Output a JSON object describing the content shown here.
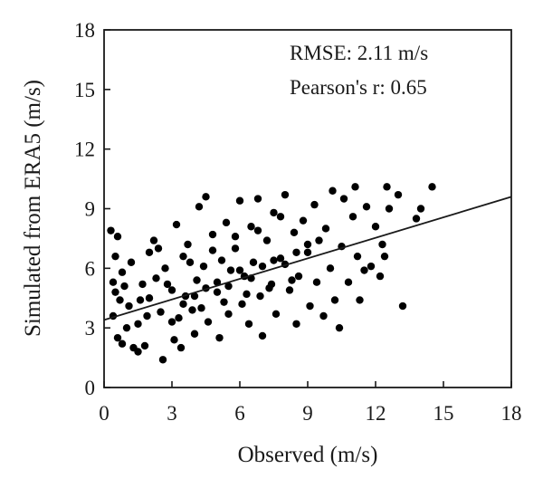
{
  "chart_data": {
    "type": "scatter",
    "xlabel": "Observed (m/s)",
    "ylabel": "Simulated from ERA5 (m/s)",
    "xlim": [
      0,
      18
    ],
    "ylim": [
      0,
      18
    ],
    "xticks": [
      0,
      3,
      6,
      9,
      12,
      15,
      18
    ],
    "yticks": [
      0,
      3,
      6,
      9,
      12,
      15,
      18
    ],
    "grid": false,
    "annotations": [
      "RMSE: 2.11 m/s",
      "Pearson's r: 0.65"
    ],
    "regression_line": {
      "x": [
        0,
        18
      ],
      "y": [
        3.4,
        9.6
      ]
    },
    "point_color": "#000000",
    "series": [
      {
        "values": [
          [
            0.3,
            7.9
          ],
          [
            0.5,
            6.6
          ],
          [
            0.6,
            7.6
          ],
          [
            0.8,
            5.8
          ],
          [
            0.4,
            5.3
          ],
          [
            0.5,
            4.8
          ],
          [
            0.7,
            4.4
          ],
          [
            0.4,
            3.6
          ],
          [
            0.6,
            2.5
          ],
          [
            0.8,
            2.2
          ],
          [
            1.0,
            3.0
          ],
          [
            0.9,
            5.1
          ],
          [
            1.2,
            6.3
          ],
          [
            1.3,
            2.0
          ],
          [
            1.5,
            1.8
          ],
          [
            1.6,
            4.4
          ],
          [
            1.8,
            2.1
          ],
          [
            1.9,
            3.6
          ],
          [
            2.0,
            6.8
          ],
          [
            2.2,
            7.4
          ],
          [
            2.4,
            7.0
          ],
          [
            2.6,
            1.4
          ],
          [
            2.8,
            5.2
          ],
          [
            3.0,
            3.3
          ],
          [
            3.1,
            2.4
          ],
          [
            3.2,
            8.2
          ],
          [
            3.4,
            2.0
          ],
          [
            3.5,
            6.6
          ],
          [
            3.6,
            4.6
          ],
          [
            3.7,
            7.2
          ],
          [
            3.9,
            3.9
          ],
          [
            4.0,
            2.7
          ],
          [
            4.1,
            5.4
          ],
          [
            4.2,
            9.1
          ],
          [
            4.4,
            6.1
          ],
          [
            4.5,
            9.6
          ],
          [
            4.6,
            3.3
          ],
          [
            4.8,
            7.7
          ],
          [
            5.0,
            4.8
          ],
          [
            5.1,
            2.5
          ],
          [
            5.2,
            6.4
          ],
          [
            5.4,
            8.3
          ],
          [
            5.5,
            3.7
          ],
          [
            5.6,
            5.9
          ],
          [
            5.8,
            7.0
          ],
          [
            6.0,
            9.4
          ],
          [
            6.1,
            4.2
          ],
          [
            6.2,
            5.6
          ],
          [
            6.4,
            3.2
          ],
          [
            6.5,
            8.1
          ],
          [
            6.6,
            6.3
          ],
          [
            6.8,
            9.5
          ],
          [
            6.9,
            4.6
          ],
          [
            7.0,
            2.6
          ],
          [
            7.2,
            7.4
          ],
          [
            7.4,
            5.2
          ],
          [
            7.5,
            8.8
          ],
          [
            7.6,
            3.7
          ],
          [
            7.8,
            6.5
          ],
          [
            8.0,
            9.7
          ],
          [
            8.2,
            4.9
          ],
          [
            8.4,
            7.8
          ],
          [
            8.5,
            3.2
          ],
          [
            8.6,
            5.6
          ],
          [
            8.8,
            8.4
          ],
          [
            9.0,
            6.8
          ],
          [
            9.1,
            4.1
          ],
          [
            9.3,
            9.2
          ],
          [
            9.4,
            5.3
          ],
          [
            9.5,
            7.4
          ],
          [
            9.7,
            3.6
          ],
          [
            9.8,
            8.0
          ],
          [
            10.0,
            6.0
          ],
          [
            10.1,
            9.9
          ],
          [
            10.2,
            4.4
          ],
          [
            10.4,
            3.0
          ],
          [
            10.5,
            7.1
          ],
          [
            10.6,
            9.5
          ],
          [
            10.8,
            5.3
          ],
          [
            11.0,
            8.6
          ],
          [
            11.1,
            10.1
          ],
          [
            11.2,
            6.6
          ],
          [
            11.3,
            4.4
          ],
          [
            11.5,
            5.9
          ],
          [
            11.6,
            9.1
          ],
          [
            11.8,
            6.1
          ],
          [
            12.0,
            8.1
          ],
          [
            12.2,
            5.6
          ],
          [
            12.3,
            7.2
          ],
          [
            12.4,
            6.6
          ],
          [
            12.5,
            10.1
          ],
          [
            12.6,
            9.0
          ],
          [
            13.0,
            9.7
          ],
          [
            13.2,
            4.1
          ],
          [
            13.8,
            8.5
          ],
          [
            14.0,
            9.0
          ],
          [
            14.5,
            10.1
          ],
          [
            2.0,
            4.5
          ],
          [
            2.5,
            3.8
          ],
          [
            3.0,
            4.9
          ],
          [
            3.5,
            4.2
          ],
          [
            4.0,
            4.6
          ],
          [
            4.5,
            5.0
          ],
          [
            5.0,
            5.3
          ],
          [
            5.5,
            5.1
          ],
          [
            6.0,
            5.9
          ],
          [
            6.5,
            5.5
          ],
          [
            7.0,
            6.1
          ],
          [
            7.5,
            6.4
          ],
          [
            8.0,
            6.2
          ],
          [
            8.5,
            6.8
          ],
          [
            9.0,
            7.2
          ],
          [
            1.5,
            3.2
          ],
          [
            2.3,
            5.5
          ],
          [
            3.3,
            3.5
          ],
          [
            4.3,
            4.0
          ],
          [
            5.3,
            4.3
          ],
          [
            6.3,
            4.7
          ],
          [
            7.3,
            5.0
          ],
          [
            8.3,
            5.4
          ],
          [
            1.1,
            4.1
          ],
          [
            1.7,
            5.2
          ],
          [
            2.7,
            6.0
          ],
          [
            3.8,
            6.3
          ],
          [
            4.8,
            6.9
          ],
          [
            5.8,
            7.6
          ],
          [
            6.8,
            7.9
          ],
          [
            7.8,
            8.6
          ]
        ]
      }
    ]
  }
}
